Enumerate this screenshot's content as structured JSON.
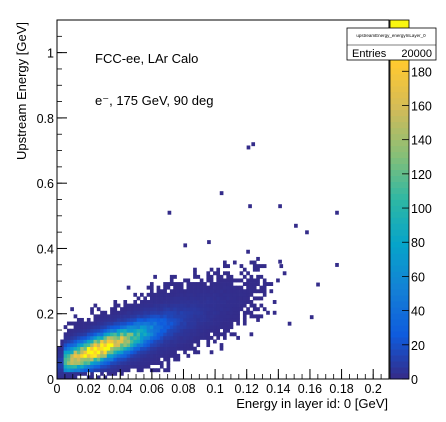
{
  "chart_data": {
    "type": "heatmap",
    "xlabel": "Energy in layer id: 0 [GeV]",
    "ylabel": "Upstream Energy [GeV]",
    "xlim": [
      0,
      0.21
    ],
    "ylim": [
      0,
      1.1
    ],
    "x_ticks": [
      "0",
      "0.02",
      "0.04",
      "0.06",
      "0.08",
      "0.1",
      "0.12",
      "0.14",
      "0.16",
      "0.18",
      "0.2"
    ],
    "y_ticks": [
      "0",
      "0.2",
      "0.4",
      "0.6",
      "0.8",
      "1"
    ],
    "annotations": [
      "FCC-ee, LAr Calo",
      "e⁻, 175 GeV, 90 deg"
    ],
    "stats_box": {
      "name": "upstreamEnergy_energyInLayer_0",
      "entries_label": "Entries",
      "entries_value": "20000"
    },
    "z_range": [
      0,
      210
    ],
    "palette_ticks": [
      "0",
      "20",
      "40",
      "60",
      "80",
      "100",
      "120",
      "140",
      "160",
      "180",
      "200"
    ],
    "palette": "kBird",
    "bins": {
      "nx": 100,
      "ny": 100
    },
    "distribution": {
      "core_center": [
        0.026,
        0.09
      ],
      "correlation": "positive, elongated band from (0.005,0.03) to (0.11,0.26)",
      "tail_points": [
        [
          0.124,
          0.72
        ],
        [
          0.121,
          0.71
        ],
        [
          0.104,
          0.57
        ],
        [
          0.071,
          0.51
        ],
        [
          0.122,
          0.53
        ],
        [
          0.141,
          0.53
        ],
        [
          0.177,
          0.51
        ],
        [
          0.151,
          0.47
        ],
        [
          0.158,
          0.45
        ],
        [
          0.081,
          0.41
        ],
        [
          0.096,
          0.42
        ],
        [
          0.177,
          0.35
        ],
        [
          0.141,
          0.36
        ],
        [
          0.165,
          0.29
        ],
        [
          0.147,
          0.17
        ],
        [
          0.161,
          0.19
        ]
      ]
    }
  }
}
